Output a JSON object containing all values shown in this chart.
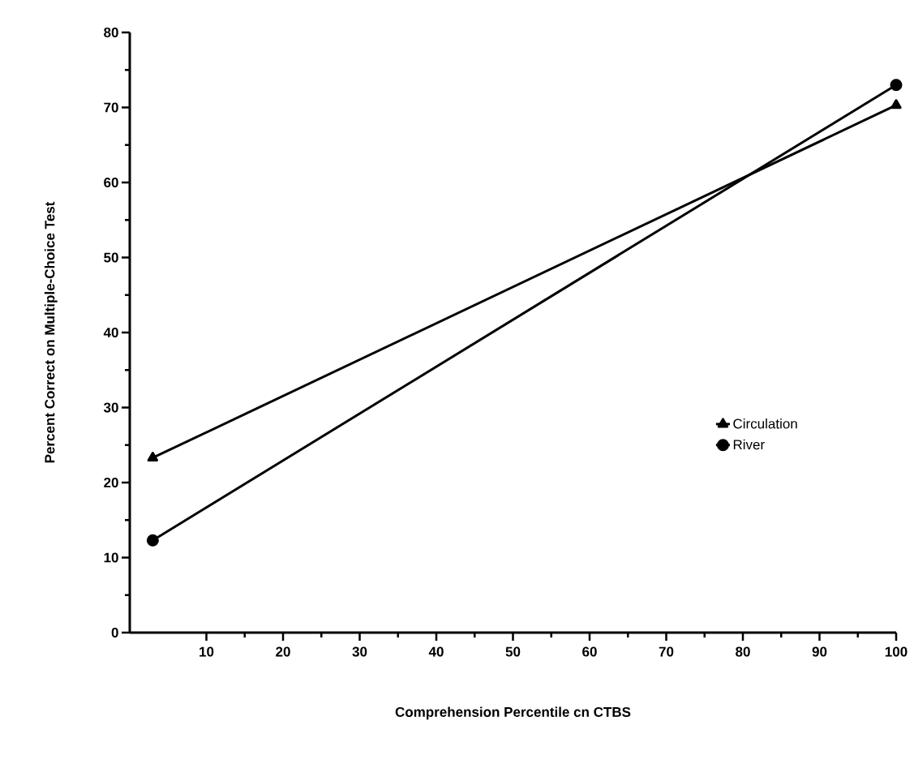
{
  "chart_data": {
    "type": "line",
    "xlabel": "Comprehension Percentile cn CTBS",
    "ylabel": "Percent Correct on Multiple-Choice Test",
    "x": [
      3,
      100
    ],
    "series": [
      {
        "name": "Circulation",
        "color": "#000000",
        "marker": "triangle",
        "values": [
          23.3,
          70.3
        ]
      },
      {
        "name": "River",
        "color": "#000000",
        "marker": "circle",
        "values": [
          12.3,
          73
        ]
      }
    ],
    "xlim": [
      0,
      100
    ],
    "ylim": [
      0,
      80
    ],
    "xticks": [
      10,
      20,
      30,
      40,
      50,
      60,
      70,
      80,
      90,
      100
    ],
    "yticks": [
      0,
      10,
      20,
      30,
      40,
      50,
      60,
      70,
      80
    ],
    "grid": false,
    "legend": "right",
    "line_style": "solid"
  }
}
